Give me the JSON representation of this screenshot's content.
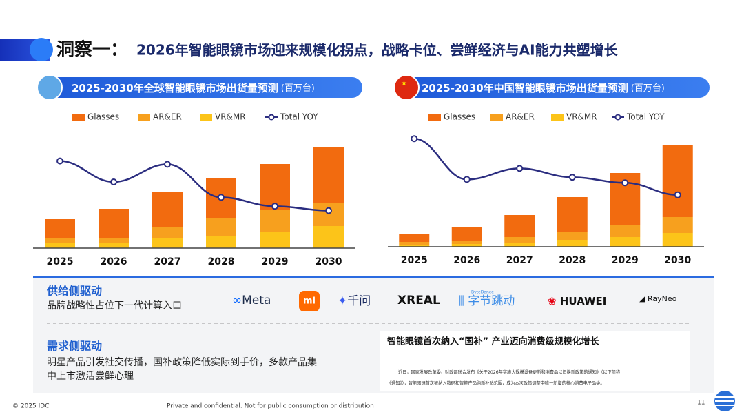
{
  "header": {
    "label": "洞察一：",
    "title": "2026年智能眼镜市场迎来规模化拐点，战略卡位、尝鲜经济与AI能力共塑增长"
  },
  "chart_data": [
    {
      "type": "bar",
      "stacked": true,
      "title": "2025-2030年全球智能眼镜市场出货量预测",
      "unit": "(百万台)",
      "categories": [
        "2025",
        "2026",
        "2027",
        "2028",
        "2029",
        "2030"
      ],
      "series": [
        {
          "name": "Glasses",
          "color": "#f26b0f",
          "values": [
            27,
            42,
            50,
            58,
            67,
            81
          ]
        },
        {
          "name": "AR&ER",
          "color": "#f7a01e",
          "values": [
            7,
            7,
            17,
            25,
            31,
            33
          ]
        },
        {
          "name": "VR&MR",
          "color": "#fcc419",
          "values": [
            8,
            8,
            14,
            18,
            24,
            32
          ]
        },
        {
          "name": "Total YOY",
          "color": "#2b2d80",
          "axis": "y2",
          "values": [
            79,
            60,
            76,
            46,
            38,
            34
          ]
        }
      ],
      "ylim": [
        0,
        160
      ],
      "y2lim": [
        0,
        100
      ]
    },
    {
      "type": "bar",
      "stacked": true,
      "title": "2025-2030年中国智能眼镜市场出货量预测",
      "unit": "(百万台)",
      "categories": [
        "2025",
        "2026",
        "2027",
        "2028",
        "2029",
        "2030"
      ],
      "series": [
        {
          "name": "Glasses",
          "color": "#f26b0f",
          "values": [
            11,
            20,
            32,
            50,
            75,
            104
          ]
        },
        {
          "name": "AR&ER",
          "color": "#f7a01e",
          "values": [
            4,
            5,
            8,
            12,
            18,
            23
          ]
        },
        {
          "name": "VR&MR",
          "color": "#fcc419",
          "values": [
            3,
            4,
            6,
            10,
            14,
            20
          ]
        },
        {
          "name": "Total YOY",
          "color": "#2b2d80",
          "axis": "y2",
          "values": [
            98,
            61,
            71,
            63,
            58,
            47
          ]
        }
      ],
      "ylim": [
        0,
        160
      ],
      "y2lim": [
        0,
        100
      ]
    }
  ],
  "supply": {
    "title": "供给侧驱动",
    "text": "品牌战略性占位下一代计算入口"
  },
  "logos": [
    "Meta",
    "mi",
    "千问",
    "XREAL",
    "ByteDance",
    "字节跳动",
    "HUAWEI",
    "RayNeo"
  ],
  "demand": {
    "title": "需求侧驱动",
    "lines": [
      "明星产品引发社交传播，国补政策降低实际到手价，多款产品集",
      "中上市激活尝鲜心理"
    ]
  },
  "news": {
    "title": "智能眼镜首次纳入“国补” 产业迈向消费级规模化增长",
    "body": [
      "近日，国家发展改革委、财政部联合发布《关于2026年实施大规模设备更新和消费品以旧换新政策的通知》（以下简称",
      "《通知》），智能眼镜首次被纳入数码和智能产品购新补贴范围，成为本次政策调整中唯一新增的核心消费电子品类。"
    ]
  },
  "footer": {
    "copyright": "© 2025 IDC",
    "notice": "Private and confidential. Not for public consumption or distribution",
    "page": "11"
  }
}
